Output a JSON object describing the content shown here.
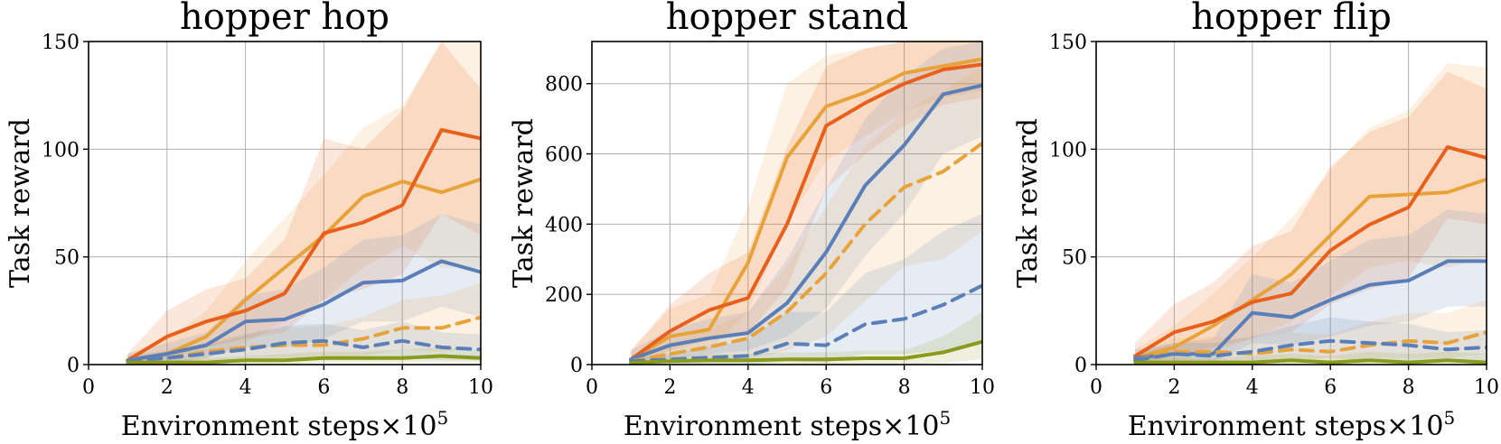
{
  "chart_data": [
    {
      "type": "line",
      "title": "hopper hop",
      "xlabel": "Environment steps",
      "xlabel_suffix": "×10",
      "xlabel_exp": "5",
      "ylabel": "Task reward",
      "xlim": [
        0,
        10
      ],
      "ylim": [
        0,
        150
      ],
      "xticks": [
        0,
        2,
        4,
        6,
        8,
        10
      ],
      "yticks": [
        0,
        50,
        100,
        150
      ],
      "grid": true,
      "x": [
        1,
        2,
        3,
        4,
        5,
        6,
        7,
        8,
        9,
        10
      ],
      "series": [
        {
          "color": "#e8a23a",
          "dash": "solid",
          "values": [
            2,
            5,
            13,
            30,
            45,
            60,
            78,
            85,
            80,
            86
          ],
          "lower": [
            0,
            0,
            3,
            10,
            20,
            30,
            45,
            55,
            45,
            45
          ],
          "upper": [
            5,
            12,
            25,
            48,
            68,
            88,
            110,
            120,
            150,
            152
          ]
        },
        {
          "color": "#e8601c",
          "dash": "solid",
          "values": [
            2,
            13,
            20,
            25,
            33,
            61,
            66,
            74,
            109,
            105
          ],
          "lower": [
            0,
            3,
            8,
            12,
            15,
            30,
            35,
            42,
            70,
            60
          ],
          "upper": [
            5,
            25,
            35,
            40,
            58,
            105,
            100,
            118,
            150,
            128
          ]
        },
        {
          "color": "#5a7fb8",
          "dash": "solid",
          "values": [
            2,
            5,
            9,
            20,
            21,
            28,
            38,
            39,
            48,
            43
          ],
          "lower": [
            0,
            1,
            3,
            8,
            8,
            12,
            20,
            20,
            27,
            22
          ],
          "upper": [
            5,
            10,
            15,
            32,
            35,
            45,
            58,
            60,
            70,
            65
          ]
        },
        {
          "color": "#e8a23a",
          "dash": "dashed",
          "values": [
            2,
            3,
            6,
            8,
            9,
            9,
            12,
            17,
            17,
            22
          ],
          "lower": [
            0,
            0,
            2,
            3,
            3,
            3,
            4,
            7,
            6,
            8
          ],
          "upper": [
            4,
            7,
            11,
            14,
            17,
            18,
            22,
            30,
            32,
            38
          ]
        },
        {
          "color": "#5a7fb8",
          "dash": "dashed",
          "values": [
            2,
            3,
            5,
            7,
            10,
            11,
            8,
            11,
            8,
            7
          ],
          "lower": [
            0,
            1,
            2,
            2,
            3,
            3,
            2,
            3,
            2,
            2
          ],
          "upper": [
            4,
            6,
            9,
            14,
            18,
            19,
            16,
            20,
            15,
            14
          ]
        },
        {
          "color": "#8a9a1b",
          "dash": "solid",
          "values": [
            1,
            1,
            1,
            2,
            2,
            3,
            3,
            3,
            4,
            3
          ],
          "lower": [
            0,
            0,
            0,
            0,
            0,
            1,
            1,
            1,
            1,
            1
          ],
          "upper": [
            2,
            2,
            3,
            4,
            5,
            6,
            6,
            7,
            8,
            7
          ]
        }
      ]
    },
    {
      "type": "line",
      "title": "hopper stand",
      "xlabel": "Environment steps",
      "xlabel_suffix": "×10",
      "xlabel_exp": "5",
      "ylabel": "Task reward",
      "xlim": [
        0,
        10
      ],
      "ylim": [
        0,
        920
      ],
      "xticks": [
        0,
        2,
        4,
        6,
        8,
        10
      ],
      "yticks": [
        0,
        200,
        400,
        600,
        800
      ],
      "grid": true,
      "x": [
        1,
        2,
        3,
        4,
        5,
        6,
        7,
        8,
        9,
        10
      ],
      "series": [
        {
          "color": "#e8a23a",
          "dash": "solid",
          "values": [
            15,
            80,
            100,
            290,
            590,
            735,
            775,
            830,
            850,
            870
          ],
          "lower": [
            0,
            30,
            40,
            150,
            400,
            580,
            650,
            720,
            760,
            780
          ],
          "upper": [
            40,
            160,
            200,
            450,
            800,
            880,
            900,
            920,
            920,
            920
          ]
        },
        {
          "color": "#e8601c",
          "dash": "solid",
          "values": [
            15,
            95,
            155,
            190,
            400,
            680,
            745,
            800,
            840,
            855
          ],
          "lower": [
            0,
            40,
            70,
            90,
            220,
            500,
            600,
            680,
            740,
            760
          ],
          "upper": [
            40,
            170,
            260,
            320,
            620,
            850,
            900,
            920,
            920,
            920
          ]
        },
        {
          "color": "#5a7fb8",
          "dash": "solid",
          "values": [
            15,
            55,
            75,
            90,
            175,
            320,
            510,
            625,
            770,
            795
          ],
          "lower": [
            0,
            20,
            30,
            40,
            80,
            160,
            310,
            430,
            600,
            650
          ],
          "upper": [
            40,
            100,
            130,
            150,
            300,
            500,
            700,
            820,
            900,
            920
          ]
        },
        {
          "color": "#e8a23a",
          "dash": "dashed",
          "values": [
            10,
            30,
            50,
            75,
            150,
            260,
            400,
            505,
            550,
            630
          ],
          "lower": [
            0,
            5,
            10,
            15,
            40,
            80,
            180,
            280,
            300,
            380
          ],
          "upper": [
            25,
            65,
            100,
            150,
            280,
            450,
            620,
            720,
            780,
            850
          ]
        },
        {
          "color": "#5a7fb8",
          "dash": "dashed",
          "values": [
            10,
            15,
            20,
            25,
            60,
            55,
            115,
            130,
            170,
            225
          ],
          "lower": [
            0,
            0,
            0,
            0,
            10,
            5,
            30,
            30,
            40,
            60
          ],
          "upper": [
            20,
            30,
            50,
            70,
            150,
            150,
            260,
            300,
            380,
            430
          ]
        },
        {
          "color": "#8a9a1b",
          "dash": "solid",
          "values": [
            5,
            10,
            12,
            12,
            15,
            15,
            18,
            18,
            35,
            65
          ],
          "lower": [
            0,
            0,
            0,
            0,
            0,
            0,
            0,
            0,
            5,
            15
          ],
          "upper": [
            15,
            25,
            30,
            30,
            35,
            35,
            40,
            40,
            80,
            150
          ]
        }
      ]
    },
    {
      "type": "line",
      "title": "hopper flip",
      "xlabel": "Environment steps",
      "xlabel_suffix": "×10",
      "xlabel_exp": "5",
      "ylabel": "Task reward",
      "xlim": [
        0,
        10
      ],
      "ylim": [
        0,
        150
      ],
      "xticks": [
        0,
        2,
        4,
        6,
        8,
        10
      ],
      "yticks": [
        0,
        50,
        100,
        150
      ],
      "grid": true,
      "x": [
        1,
        2,
        3,
        4,
        5,
        6,
        7,
        8,
        9,
        10
      ],
      "series": [
        {
          "color": "#e8a23a",
          "dash": "solid",
          "values": [
            3,
            8,
            18,
            30,
            42,
            60,
            78,
            79,
            80,
            86
          ],
          "lower": [
            0,
            1,
            6,
            12,
            20,
            32,
            45,
            48,
            45,
            50
          ],
          "upper": [
            7,
            18,
            33,
            50,
            68,
            90,
            110,
            118,
            140,
            138
          ]
        },
        {
          "color": "#e8601c",
          "dash": "solid",
          "values": [
            4,
            15,
            20,
            29,
            33,
            53,
            65,
            73,
            101,
            96
          ],
          "lower": [
            0,
            4,
            8,
            12,
            15,
            28,
            35,
            40,
            68,
            65
          ],
          "upper": [
            10,
            28,
            38,
            55,
            62,
            92,
            108,
            115,
            136,
            128
          ]
        },
        {
          "color": "#5a7fb8",
          "dash": "solid",
          "values": [
            3,
            5,
            5,
            24,
            22,
            30,
            37,
            39,
            48,
            48
          ],
          "lower": [
            0,
            1,
            1,
            10,
            9,
            13,
            18,
            20,
            27,
            27
          ],
          "upper": [
            7,
            10,
            12,
            42,
            38,
            48,
            58,
            60,
            72,
            70
          ]
        },
        {
          "color": "#e8a23a",
          "dash": "dashed",
          "values": [
            2,
            6,
            6,
            5,
            7,
            6,
            9,
            11,
            10,
            15
          ],
          "lower": [
            0,
            1,
            1,
            1,
            2,
            1,
            3,
            3,
            3,
            5
          ],
          "upper": [
            5,
            12,
            13,
            12,
            15,
            14,
            20,
            24,
            24,
            30
          ]
        },
        {
          "color": "#5a7fb8",
          "dash": "dashed",
          "values": [
            2,
            5,
            4,
            6,
            9,
            11,
            10,
            9,
            7,
            8
          ],
          "lower": [
            0,
            1,
            1,
            1,
            2,
            3,
            2,
            2,
            2,
            2
          ],
          "upper": [
            5,
            10,
            10,
            13,
            18,
            22,
            20,
            19,
            15,
            16
          ]
        },
        {
          "color": "#8a9a1b",
          "dash": "solid",
          "values": [
            1,
            1,
            1,
            1,
            2,
            1,
            2,
            1,
            2,
            1
          ],
          "lower": [
            0,
            0,
            0,
            0,
            0,
            0,
            0,
            0,
            0,
            0
          ],
          "upper": [
            3,
            3,
            3,
            4,
            5,
            4,
            6,
            5,
            6,
            5
          ]
        }
      ]
    }
  ]
}
